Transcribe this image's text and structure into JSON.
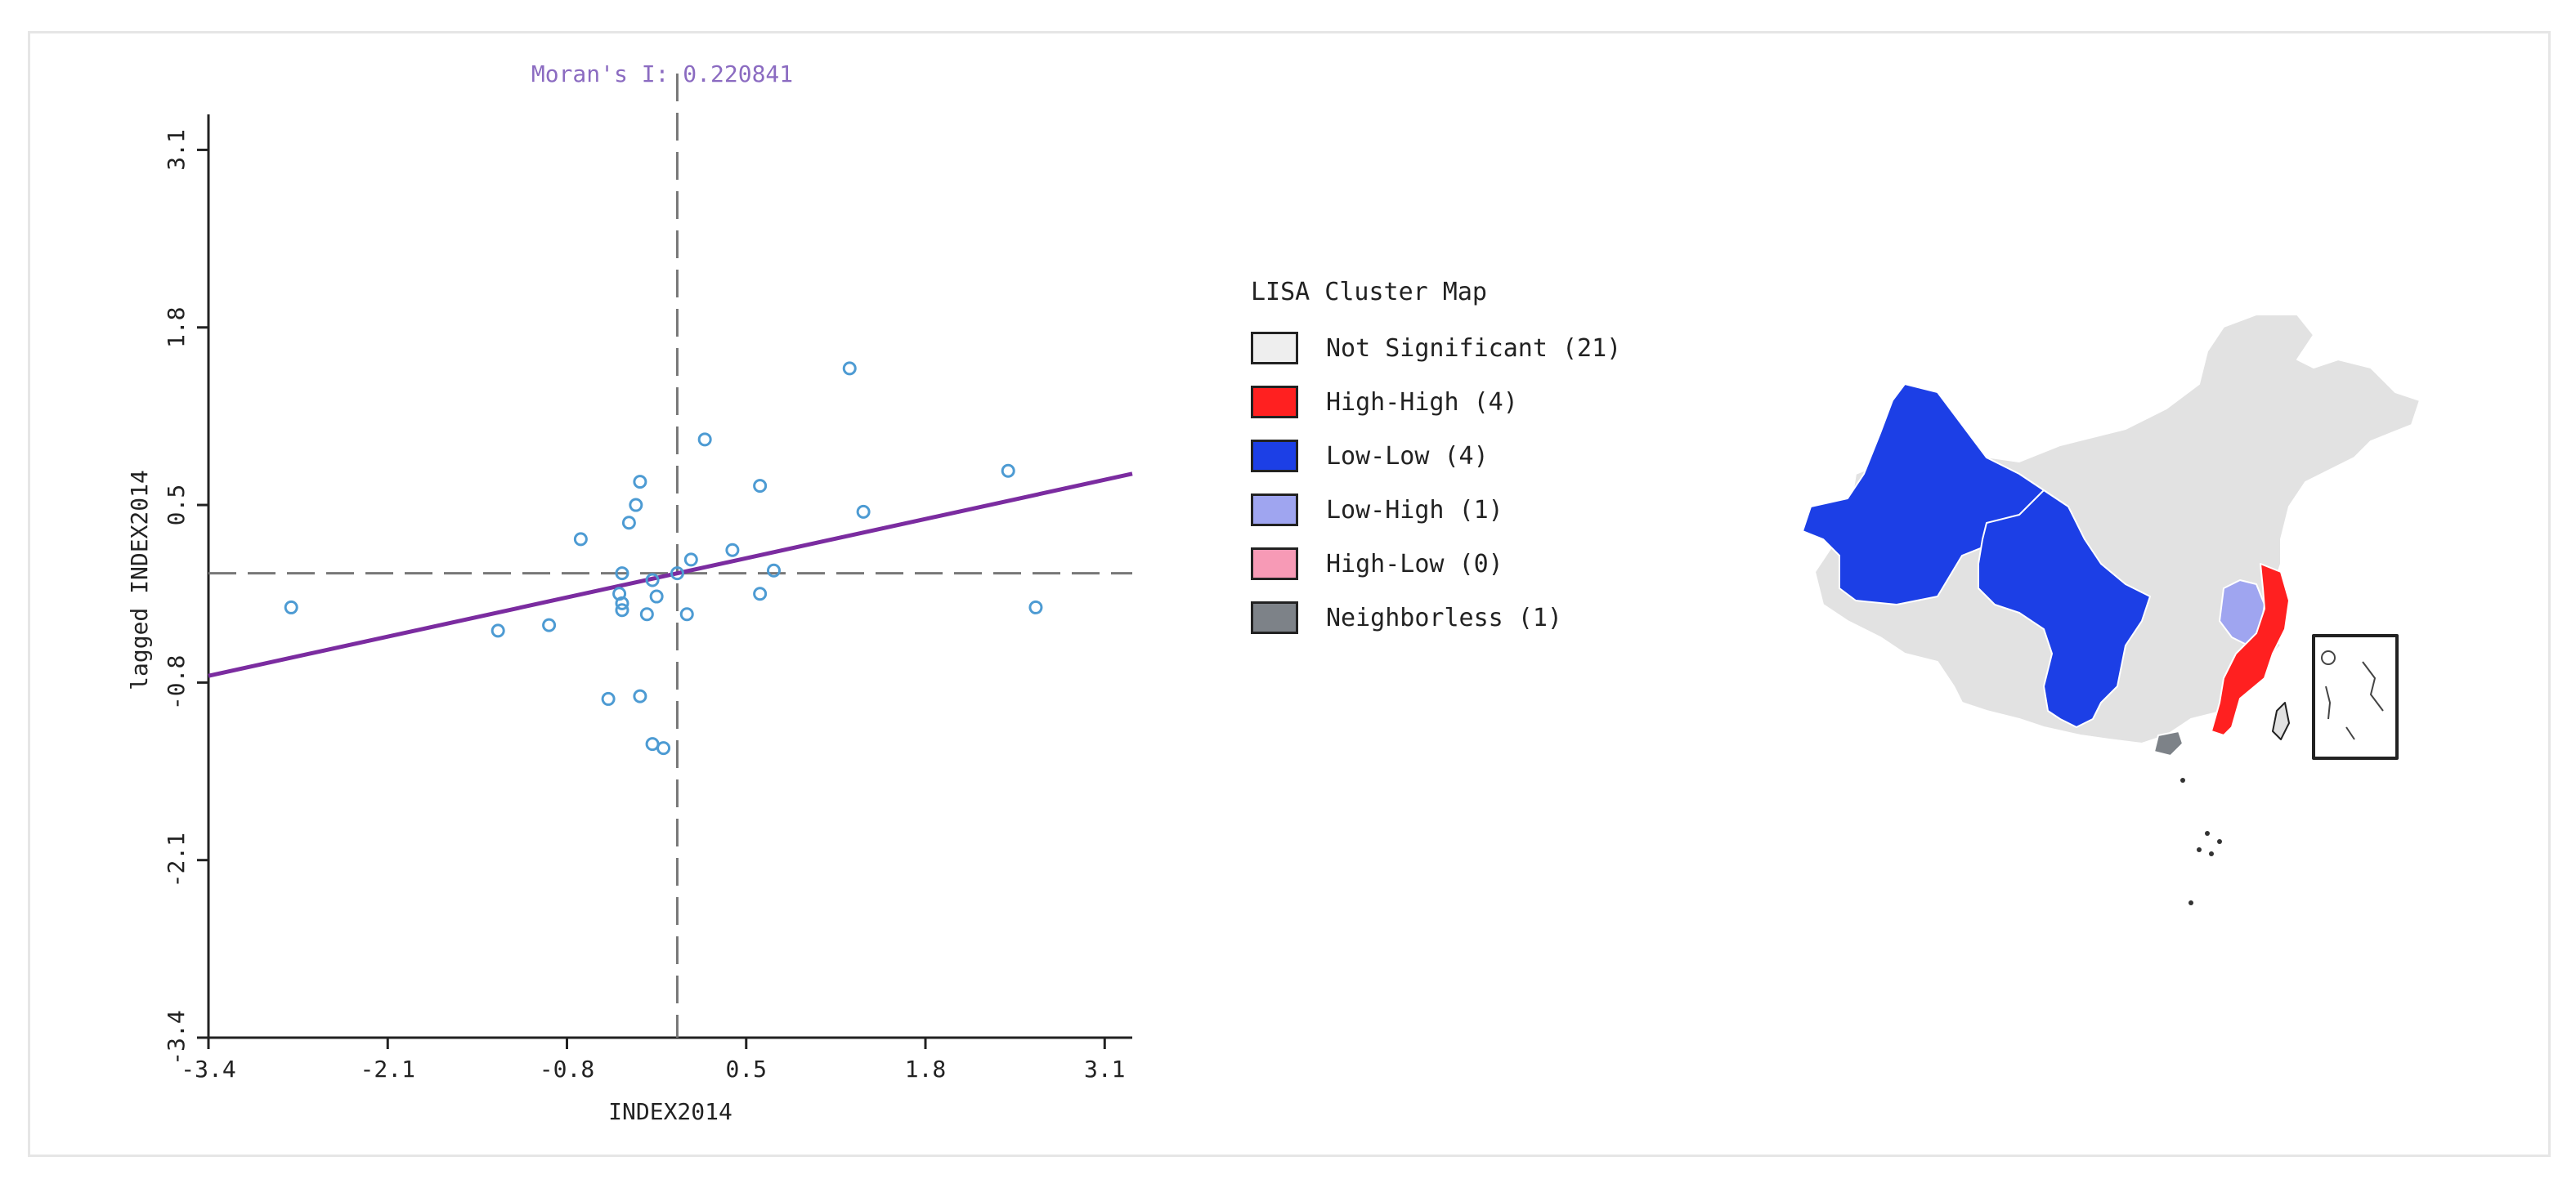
{
  "chart_data": [
    {
      "type": "scatter",
      "title": "Moran's I: 0.220841",
      "xlabel": "INDEX2014",
      "ylabel": "lagged INDEX2014",
      "xlim": [
        -3.4,
        3.3
      ],
      "ylim": [
        -3.4,
        3.3
      ],
      "x_ticks": [
        "-3.4",
        "-2.1",
        "-0.8",
        "0.5",
        "1.8",
        "3.1"
      ],
      "y_ticks": [
        "-3.4",
        "-2.1",
        "-0.8",
        "0.5",
        "1.8",
        "3.1"
      ],
      "mean_lines": {
        "x": 0.0,
        "y": 0.0
      },
      "regression": {
        "slope": 0.220841,
        "intercept": 0.0
      },
      "points": [
        {
          "x": -2.8,
          "y": -0.25
        },
        {
          "x": -1.3,
          "y": -0.42
        },
        {
          "x": -0.93,
          "y": -0.38
        },
        {
          "x": -0.7,
          "y": 0.25
        },
        {
          "x": -0.5,
          "y": -0.92
        },
        {
          "x": -0.42,
          "y": -0.15
        },
        {
          "x": -0.4,
          "y": -0.22
        },
        {
          "x": -0.4,
          "y": -0.27
        },
        {
          "x": -0.4,
          "y": 0.0
        },
        {
          "x": -0.35,
          "y": 0.37
        },
        {
          "x": -0.3,
          "y": 0.5
        },
        {
          "x": -0.27,
          "y": 0.67
        },
        {
          "x": -0.27,
          "y": -0.9
        },
        {
          "x": -0.22,
          "y": -0.3
        },
        {
          "x": -0.18,
          "y": -0.05
        },
        {
          "x": -0.18,
          "y": -1.25
        },
        {
          "x": -0.15,
          "y": -0.17
        },
        {
          "x": -0.1,
          "y": -1.28
        },
        {
          "x": 0.0,
          "y": 0.0
        },
        {
          "x": 0.07,
          "y": -0.3
        },
        {
          "x": 0.1,
          "y": 0.1
        },
        {
          "x": 0.2,
          "y": 0.98
        },
        {
          "x": 0.4,
          "y": 0.17
        },
        {
          "x": 0.6,
          "y": 0.64
        },
        {
          "x": 0.6,
          "y": -0.15
        },
        {
          "x": 0.7,
          "y": 0.02
        },
        {
          "x": 1.25,
          "y": 1.5
        },
        {
          "x": 1.35,
          "y": 0.45
        },
        {
          "x": 2.4,
          "y": 0.75
        },
        {
          "x": 2.6,
          "y": -0.25
        }
      ],
      "colors": {
        "points": "#4d9bd3",
        "regression": "#7b2ca0",
        "title": "#8b6bc1",
        "axis": "#222222",
        "dash": "#777777"
      }
    }
  ],
  "legend": {
    "title": "LISA Cluster Map",
    "items": [
      {
        "label": "Not Significant (21)",
        "color": "#eeeeee"
      },
      {
        "label": "High-High (4)",
        "color": "#ff2020"
      },
      {
        "label": "Low-Low (4)",
        "color": "#1c3fe6"
      },
      {
        "label": "Low-High (1)",
        "color": "#9fa5f0"
      },
      {
        "label": "High-Low (0)",
        "color": "#f79ab6"
      },
      {
        "label": "Neighborless (1)",
        "color": "#7d8288"
      }
    ]
  },
  "map": {
    "colors": {
      "not_significant": "#e2e2e2",
      "high_high": "#ff2020",
      "low_low": "#1c3fe6",
      "low_high": "#9fa5f0",
      "neighborless": "#7d8288",
      "border": "#ffffff"
    }
  }
}
